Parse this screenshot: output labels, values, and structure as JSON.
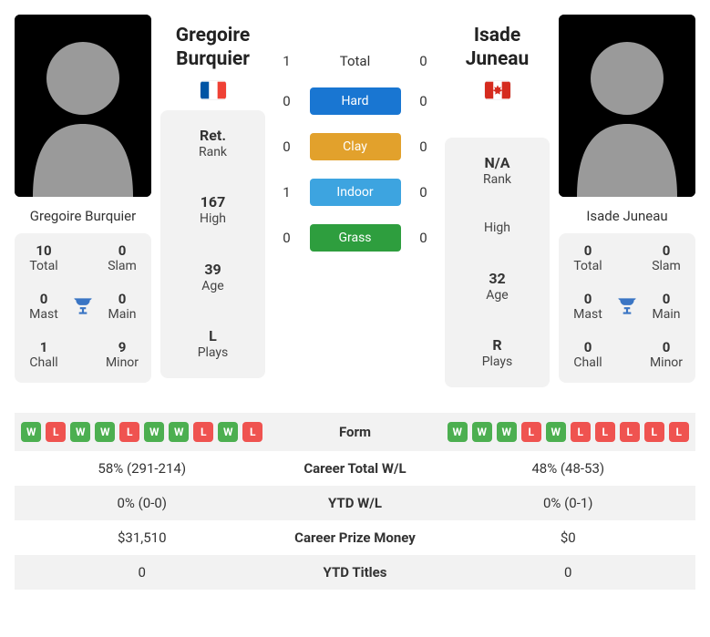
{
  "colors": {
    "card_bg": "#f2f2f2",
    "text": "#333333",
    "hard": "#1976d2",
    "clay": "#e2a12c",
    "indoor": "#3da4e0",
    "grass": "#2e9e3e",
    "form_w": "#4caf50",
    "form_l": "#ef5350",
    "trophy": "#3a75c4"
  },
  "player1": {
    "name_line1": "Gregoire",
    "name_line2": "Burquier",
    "name_full": "Gregoire Burquier",
    "country": "France",
    "flag": {
      "stripes": [
        "#0055a4",
        "#ffffff",
        "#ef4135"
      ],
      "orientation": "vertical"
    },
    "rank": {
      "value": "Ret.",
      "label": "Rank"
    },
    "high": {
      "value": "167",
      "label": "High"
    },
    "age": {
      "value": "39",
      "label": "Age"
    },
    "plays": {
      "value": "L",
      "label": "Plays"
    },
    "summary": {
      "total": {
        "val": "10",
        "lbl": "Total"
      },
      "slam": {
        "val": "0",
        "lbl": "Slam"
      },
      "mast": {
        "val": "0",
        "lbl": "Mast"
      },
      "main": {
        "val": "0",
        "lbl": "Main"
      },
      "chall": {
        "val": "1",
        "lbl": "Chall"
      },
      "minor": {
        "val": "9",
        "lbl": "Minor"
      }
    },
    "form": [
      "W",
      "L",
      "W",
      "W",
      "L",
      "W",
      "W",
      "L",
      "W",
      "L"
    ],
    "career_wl": "58% (291-214)",
    "ytd_wl": "0% (0-0)",
    "career_prize": "$31,510",
    "ytd_titles": "0"
  },
  "player2": {
    "name_line1": "Isade Juneau",
    "name_line2": "",
    "name_full": "Isade Juneau",
    "country": "Canada",
    "flag": {
      "stripes": [
        "#d52b1e",
        "#ffffff",
        "#d52b1e"
      ],
      "orientation": "vertical",
      "leaf": "#d52b1e"
    },
    "rank": {
      "value": "N/A",
      "label": "Rank"
    },
    "high": {
      "value": "",
      "label": "High"
    },
    "age": {
      "value": "32",
      "label": "Age"
    },
    "plays": {
      "value": "R",
      "label": "Plays"
    },
    "summary": {
      "total": {
        "val": "0",
        "lbl": "Total"
      },
      "slam": {
        "val": "0",
        "lbl": "Slam"
      },
      "mast": {
        "val": "0",
        "lbl": "Mast"
      },
      "main": {
        "val": "0",
        "lbl": "Main"
      },
      "chall": {
        "val": "0",
        "lbl": "Chall"
      },
      "minor": {
        "val": "0",
        "lbl": "Minor"
      }
    },
    "form": [
      "W",
      "W",
      "W",
      "L",
      "W",
      "L",
      "L",
      "L",
      "L",
      "L"
    ],
    "career_wl": "48% (48-53)",
    "ytd_wl": "0% (0-1)",
    "career_prize": "$0",
    "ytd_titles": "0"
  },
  "h2h": {
    "rows": [
      {
        "left": "1",
        "label": "Total",
        "right": "0",
        "pill": false
      },
      {
        "left": "0",
        "label": "Hard",
        "right": "0",
        "pill": true,
        "color": "#1976d2"
      },
      {
        "left": "0",
        "label": "Clay",
        "right": "0",
        "pill": true,
        "color": "#e2a12c"
      },
      {
        "left": "1",
        "label": "Indoor",
        "right": "0",
        "pill": true,
        "color": "#3da4e0"
      },
      {
        "left": "0",
        "label": "Grass",
        "right": "0",
        "pill": true,
        "color": "#2e9e3e"
      }
    ]
  },
  "compare_labels": {
    "form": "Form",
    "career_wl": "Career Total W/L",
    "ytd_wl": "YTD W/L",
    "career_prize": "Career Prize Money",
    "ytd_titles": "YTD Titles"
  }
}
